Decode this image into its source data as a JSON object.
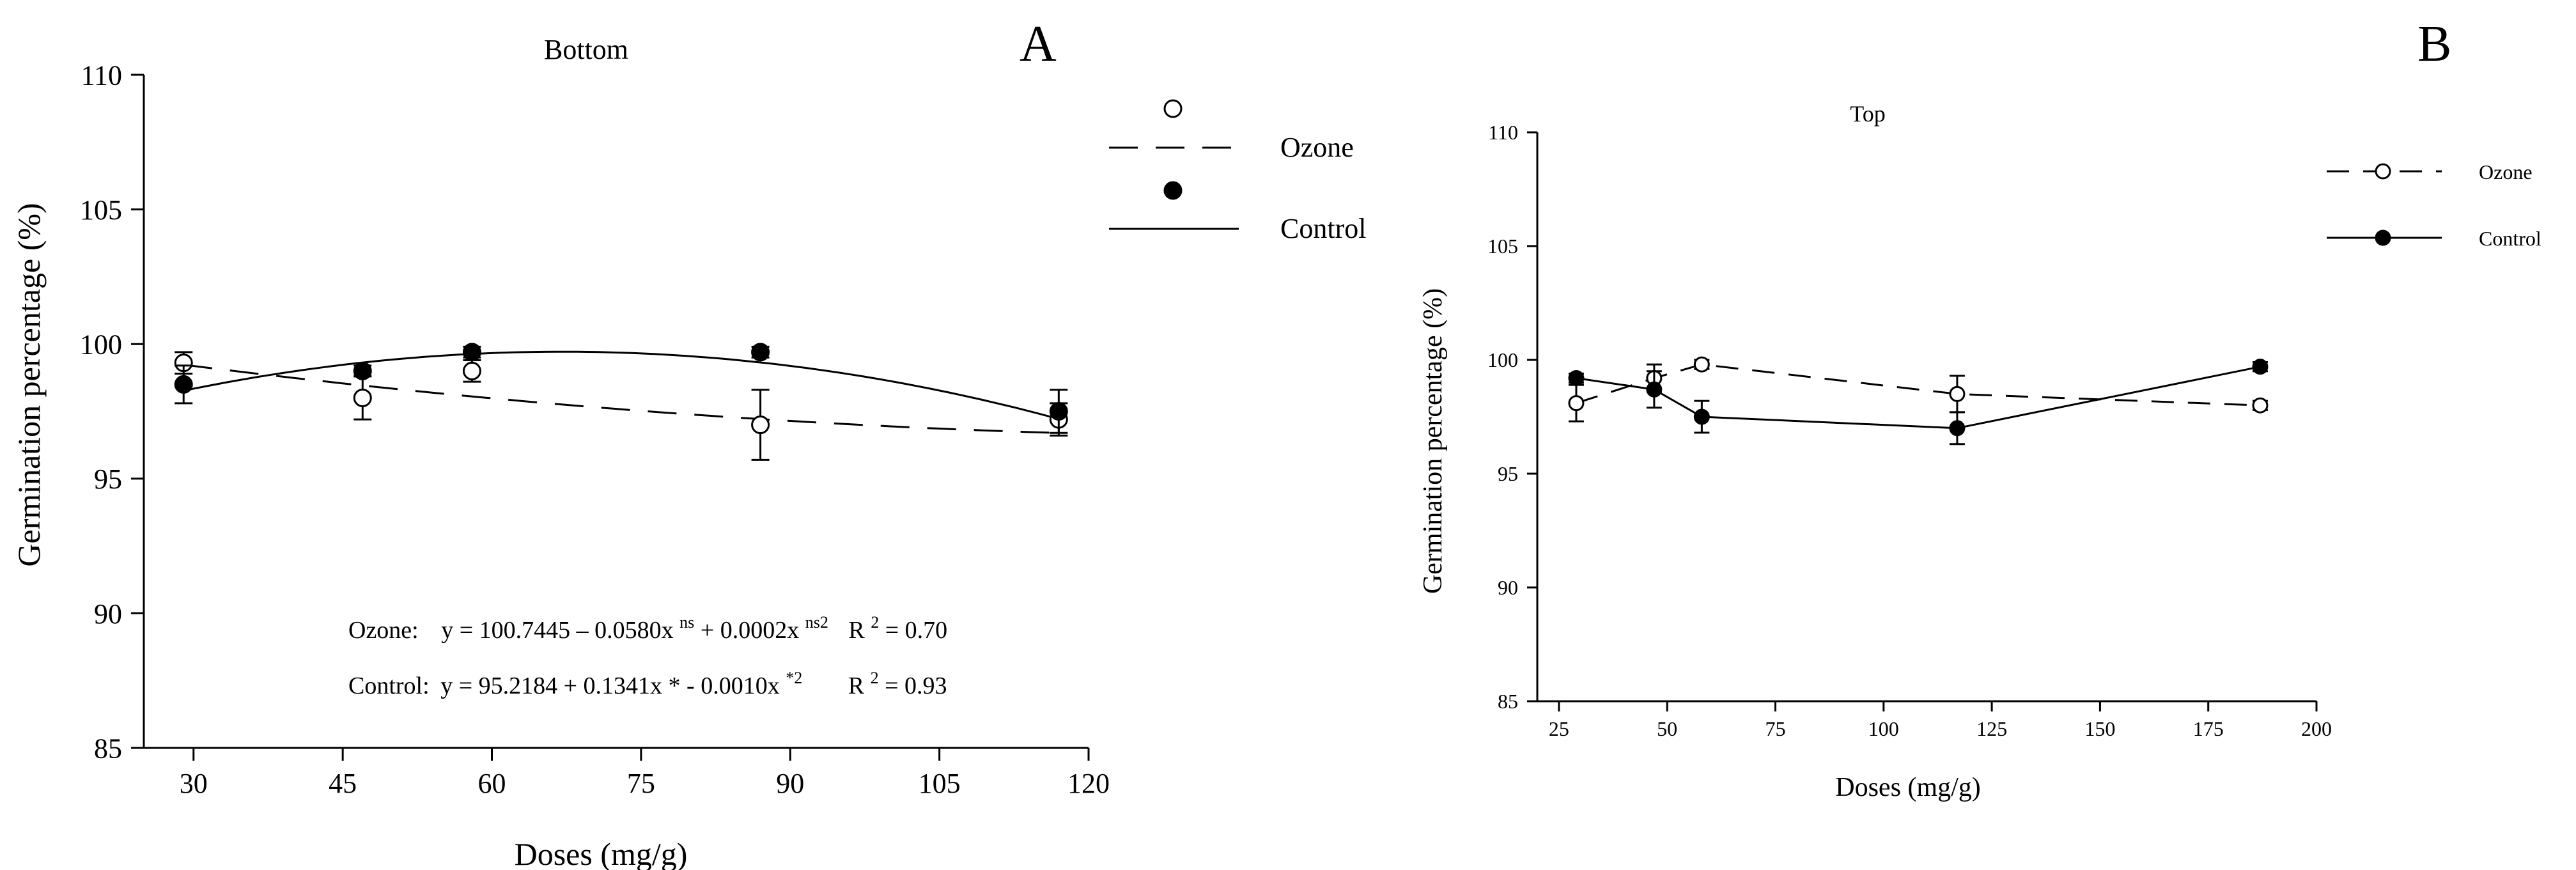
{
  "chart_data": [
    {
      "panel_letter": "A",
      "type": "scatter",
      "title": "Bottom",
      "xlabel": "Doses (mg/g)",
      "ylabel": "Germination percentage (%)",
      "xlim": [
        25,
        120
      ],
      "ylim": [
        85,
        110
      ],
      "xticks": [
        30,
        45,
        60,
        75,
        90,
        105,
        120
      ],
      "yticks": [
        85,
        90,
        95,
        100,
        105,
        110
      ],
      "series": [
        {
          "name": "Ozone",
          "marker": "open-circle",
          "line": "dashed",
          "x": [
            29,
            47,
            58,
            87,
            117
          ],
          "y": [
            99.3,
            98.0,
            99.0,
            97.0,
            97.2
          ],
          "err": [
            0.4,
            0.8,
            0.4,
            1.3,
            0.6
          ],
          "fit": {
            "type": "quadratic",
            "a": 100.7445,
            "b": -0.058,
            "c": 0.0002
          }
        },
        {
          "name": "Control",
          "marker": "filled-circle",
          "line": "solid",
          "x": [
            29,
            47,
            58,
            87,
            117
          ],
          "y": [
            98.5,
            99.0,
            99.7,
            99.7,
            97.5
          ],
          "err": [
            0.7,
            0.2,
            0.2,
            0.2,
            0.8
          ],
          "fit": {
            "type": "quadratic",
            "a": 95.2184,
            "b": 0.1341,
            "c": -0.001
          }
        }
      ],
      "annotations": {
        "ozone": {
          "label": "Ozone:",
          "eq_main": "y = 100.7445 – 0.0580x",
          "eq_sup1": "ns",
          "eq_mid": " + 0.0002x",
          "eq_sup2": "ns2",
          "r2_prefix": "R",
          "r2_sup": "2",
          "r2_value": "= 0.70"
        },
        "control": {
          "label": "Control:",
          "eq_main": "y = 95.2184 + 0.1341x * - 0.0010x",
          "eq_sup": "*2",
          "r2_prefix": "R",
          "r2_sup": "2",
          "r2_value": "= 0.93"
        }
      },
      "legend": [
        "Ozone",
        "Control"
      ]
    },
    {
      "panel_letter": "B",
      "type": "line",
      "title": "Top",
      "xlabel": "Doses (mg/g)",
      "ylabel": "Germination percentage (%)",
      "xlim": [
        20,
        200
      ],
      "ylim": [
        85,
        110
      ],
      "xticks": [
        25,
        50,
        75,
        100,
        125,
        150,
        175,
        200
      ],
      "yticks": [
        85,
        90,
        95,
        100,
        105,
        110
      ],
      "series": [
        {
          "name": "Ozone",
          "marker": "open-circle",
          "line": "dashed",
          "x": [
            29,
            47,
            58,
            117,
            187
          ],
          "y": [
            98.1,
            99.2,
            99.8,
            98.5,
            98.0
          ],
          "err": [
            0.8,
            0.6,
            0.2,
            0.8,
            0.2
          ]
        },
        {
          "name": "Control",
          "marker": "filled-circle",
          "line": "solid",
          "x": [
            29,
            47,
            58,
            117,
            187
          ],
          "y": [
            99.2,
            98.7,
            97.5,
            97.0,
            99.7
          ],
          "err": [
            0.2,
            0.8,
            0.7,
            0.7,
            0.2
          ]
        }
      ],
      "legend": [
        "Ozone",
        "Control"
      ]
    }
  ]
}
